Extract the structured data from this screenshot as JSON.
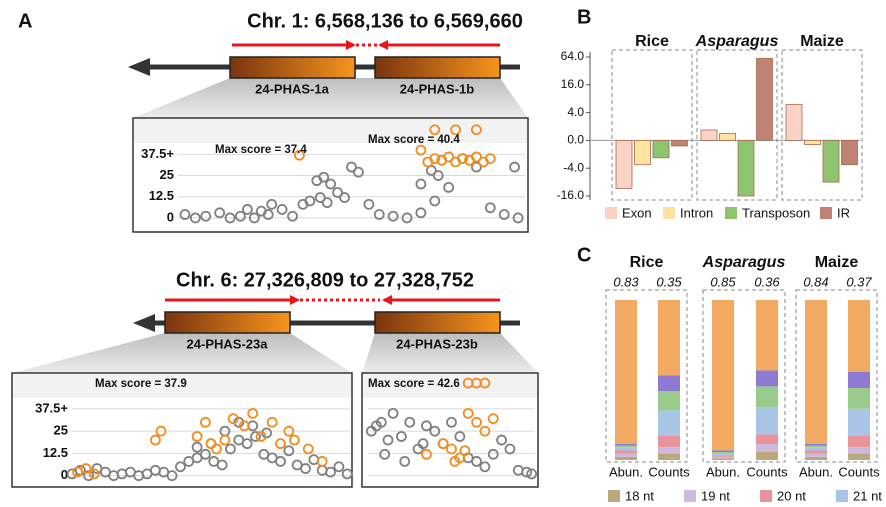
{
  "diagram": {
    "panel_labels": [
      "A",
      "B",
      "C"
    ],
    "loci": [
      {
        "title": "Chr. 1: 6,568,136 to 6,569,660",
        "genes": [
          "24-PHAS-1a",
          "24-PHAS-1b"
        ]
      },
      {
        "title": "Chr. 6: 27,326,809 to 27,328,752",
        "genes": [
          "24-PHAS-23a",
          "24-PHAS-23b"
        ]
      }
    ]
  },
  "chart_data": [
    {
      "type": "scatter",
      "annotations": [
        "Max score = 37.4",
        "Max score = 40.4"
      ],
      "xlim": [
        0,
        100
      ],
      "ylim": [
        -3,
        56
      ],
      "yticks": [
        0,
        12.5,
        25,
        {
          "value": 37.5,
          "label": "37.5+"
        }
      ],
      "grid": true,
      "series": [
        {
          "color": "#7f7f7f",
          "x": [
            2,
            5,
            8,
            12,
            15,
            18,
            22,
            26,
            30,
            33,
            36,
            40,
            42,
            44,
            46,
            48,
            50,
            52,
            55,
            58,
            62,
            66,
            70,
            74,
            78,
            82,
            86,
            90,
            94,
            98,
            20,
            24,
            27,
            38,
            41,
            43,
            70,
            73,
            75,
            97
          ],
          "values": [
            2,
            0,
            1,
            3,
            0,
            1,
            0,
            2,
            5,
            1,
            8,
            22,
            24,
            20,
            15,
            12,
            30,
            27,
            8,
            2,
            1,
            0,
            3,
            10,
            18,
            35,
            30,
            6,
            2,
            0,
            5,
            4,
            8,
            10,
            12,
            9,
            20,
            28,
            25,
            30
          ]
        },
        {
          "color": "#f28c1e",
          "x": [
            35,
            70,
            72,
            74,
            76,
            78,
            80,
            82,
            84,
            86,
            88,
            90,
            74,
            80,
            86
          ],
          "values": [
            37,
            40,
            33,
            35,
            34,
            36,
            33,
            35,
            34,
            36,
            33,
            35,
            52,
            52,
            52
          ]
        }
      ]
    },
    {
      "type": "scatter",
      "annotations": [
        "Max score = 37.9"
      ],
      "xlim": [
        0,
        100
      ],
      "ylim": [
        -3,
        56
      ],
      "yticks": [
        0,
        12.5,
        25,
        {
          "value": 37.5,
          "label": "37.5+"
        }
      ],
      "grid": true,
      "series": [
        {
          "color": "#7f7f7f",
          "x": [
            0,
            3,
            6,
            9,
            12,
            15,
            18,
            21,
            24,
            27,
            30,
            33,
            36,
            39,
            42,
            45,
            48,
            51,
            54,
            57,
            60,
            63,
            66,
            69,
            72,
            75,
            78,
            81,
            84,
            87,
            90,
            93,
            96,
            99,
            55,
            60,
            65,
            70,
            45,
            50
          ],
          "values": [
            1,
            3,
            0,
            4,
            2,
            0,
            1,
            2,
            0,
            1,
            3,
            2,
            0,
            5,
            8,
            10,
            12,
            8,
            6,
            15,
            20,
            18,
            22,
            12,
            10,
            8,
            14,
            6,
            4,
            9,
            3,
            2,
            5,
            1,
            25,
            30,
            28,
            24,
            16,
            18
          ]
        },
        {
          "color": "#f28c1e",
          "x": [
            2,
            5,
            8,
            30,
            32,
            45,
            48,
            50,
            52,
            55,
            58,
            62,
            65,
            68,
            72,
            75,
            78,
            80,
            85,
            90
          ],
          "values": [
            2,
            4,
            1,
            20,
            25,
            22,
            30,
            18,
            15,
            20,
            32,
            28,
            35,
            22,
            30,
            18,
            25,
            20,
            15,
            8
          ]
        }
      ]
    },
    {
      "type": "scatter",
      "annotations": [
        "Max score = 42.6"
      ],
      "xlim": [
        0,
        100
      ],
      "ylim": [
        -3,
        56
      ],
      "yticks": [
        0,
        12.5,
        25,
        37.5
      ],
      "grid": true,
      "series": [
        {
          "color": "#7f7f7f",
          "x": [
            2,
            5,
            8,
            12,
            15,
            20,
            25,
            30,
            35,
            40,
            45,
            50,
            55,
            60,
            65,
            70,
            75,
            80,
            85,
            90,
            95,
            98,
            10,
            22,
            33
          ],
          "values": [
            25,
            28,
            30,
            20,
            35,
            22,
            30,
            15,
            28,
            25,
            18,
            30,
            22,
            10,
            8,
            5,
            12,
            20,
            15,
            3,
            2,
            1,
            12,
            8,
            18
          ]
        },
        {
          "color": "#f28c1e",
          "x": [
            35,
            45,
            50,
            55,
            60,
            65,
            70,
            75,
            60,
            65,
            70,
            52,
            58
          ],
          "values": [
            12,
            18,
            15,
            10,
            35,
            30,
            25,
            32,
            52,
            52,
            52,
            8,
            14
          ]
        }
      ]
    },
    {
      "type": "bar",
      "yscale": "symlog",
      "linthresh": 4,
      "categories": [
        "Rice",
        "Asparagus",
        "Maize"
      ],
      "ylim": [
        -16,
        64
      ],
      "yticks": [
        {
          "value": 64,
          "label": "64.0"
        },
        {
          "value": 16,
          "label": "16.0"
        },
        {
          "value": 4,
          "label": "4.0"
        },
        {
          "value": 0,
          "label": "0.0"
        },
        {
          "value": -4,
          "label": "-4.0"
        },
        {
          "value": -16,
          "label": "-16.0"
        }
      ],
      "series": [
        {
          "name": "Exon",
          "color": "#fbd3c4",
          "values": [
            -11,
            1.5,
            6
          ]
        },
        {
          "name": "Intron",
          "color": "#fde3a0",
          "values": [
            -3.5,
            1,
            -0.6
          ]
        },
        {
          "name": "Transposon",
          "color": "#8fc46e",
          "values": [
            -2.5,
            -16,
            -8
          ]
        },
        {
          "name": "IR",
          "color": "#bf8376",
          "values": [
            -0.8,
            60,
            -3.5
          ]
        }
      ]
    },
    {
      "type": "stacked_bar",
      "groups": [
        "Rice",
        "Asparagus",
        "Maize"
      ],
      "categories": [
        "Abun.",
        "Counts",
        "Abun.",
        "Counts",
        "Abun.",
        "Counts"
      ],
      "ratios": [
        0.83,
        0.35,
        0.85,
        0.36,
        0.84,
        0.37
      ],
      "ylim": [
        0,
        100
      ],
      "series": [
        {
          "name": "18 nt",
          "color": "#b9a97c",
          "values": [
            2,
            4,
            1,
            5,
            2,
            4
          ]
        },
        {
          "name": "19 nt",
          "color": "#cdb9dc",
          "values": [
            2,
            4,
            1,
            5,
            2,
            4
          ]
        },
        {
          "name": "20 nt",
          "color": "#ea929c",
          "values": [
            2,
            7,
            1,
            6,
            2,
            7
          ]
        },
        {
          "name": "21 nt",
          "color": "#a9c5e6",
          "values": [
            2,
            16,
            1,
            17,
            2,
            17
          ]
        },
        {
          "name": null,
          "color": "#98ca8c",
          "values": [
            1,
            12,
            1,
            13,
            1,
            13
          ]
        },
        {
          "name": null,
          "color": "#8e7ad2",
          "values": [
            1,
            10,
            1,
            10,
            1,
            10
          ]
        },
        {
          "name": null,
          "color": "#f2aa62",
          "values": [
            90,
            47,
            94,
            44,
            90,
            45
          ]
        }
      ]
    }
  ]
}
